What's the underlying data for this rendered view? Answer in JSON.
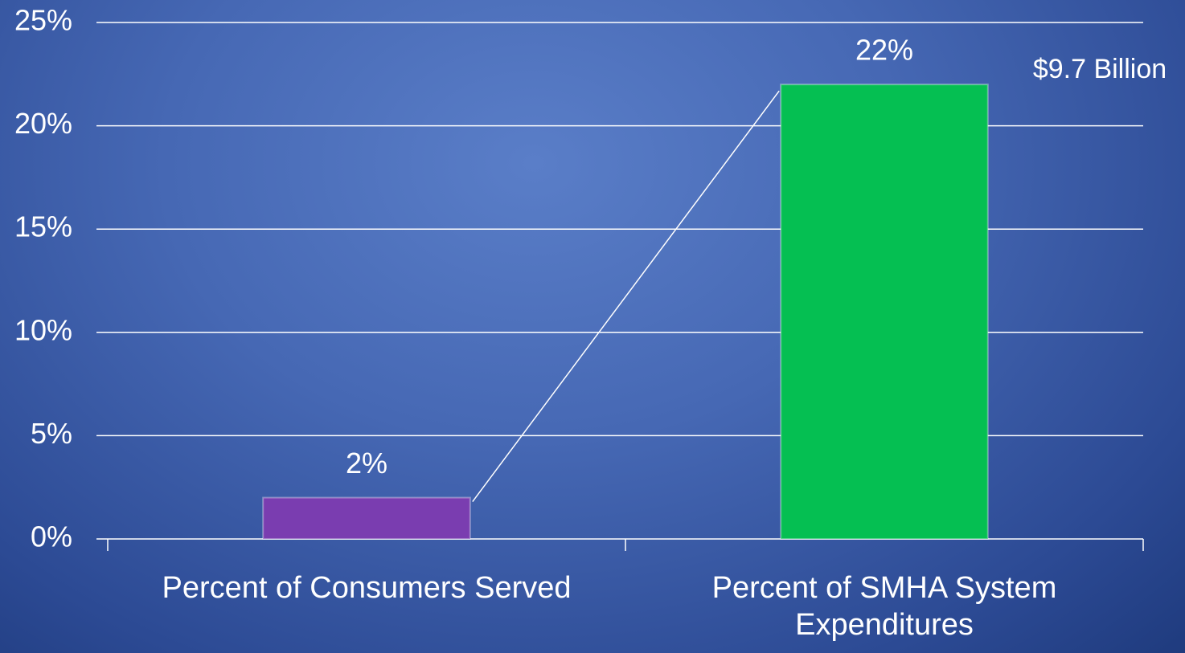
{
  "chart_data": {
    "type": "bar",
    "categories": [
      "Percent of Consumers Served",
      "Percent of SMHA System Expenditures"
    ],
    "values": [
      2,
      22
    ],
    "value_labels": [
      "2%",
      "22%"
    ],
    "colors": [
      "#7a3db0",
      "#05bf52"
    ],
    "annotation": "$9.7 Billion",
    "ylim": [
      0,
      25
    ],
    "yticks": [
      {
        "value": 0,
        "label": "0%"
      },
      {
        "value": 5,
        "label": "5%"
      },
      {
        "value": 10,
        "label": "10%"
      },
      {
        "value": 15,
        "label": "15%"
      },
      {
        "value": 20,
        "label": "20%"
      },
      {
        "value": 25,
        "label": "25%"
      }
    ],
    "grid": true
  }
}
